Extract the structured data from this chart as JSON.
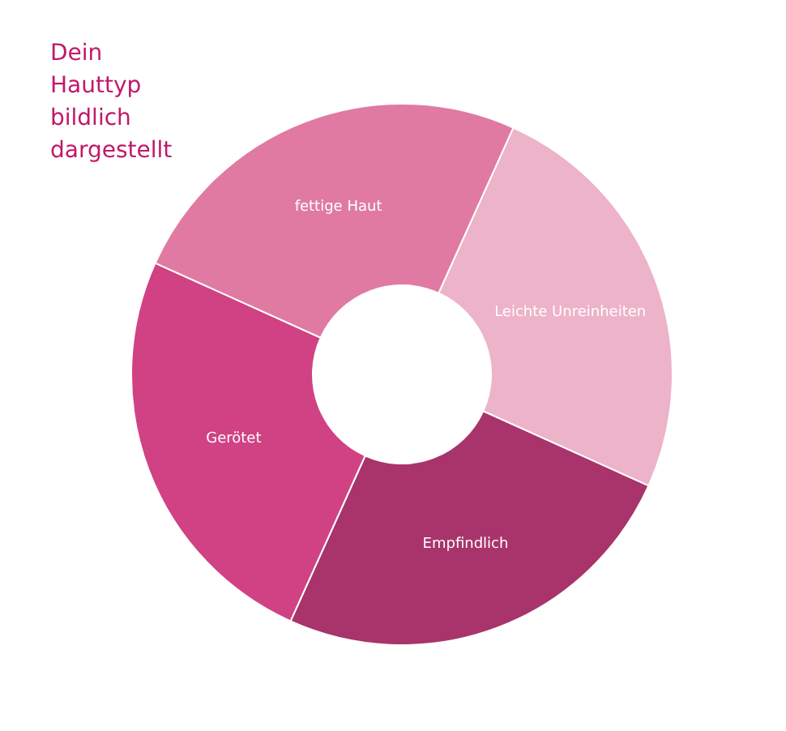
{
  "chart_data": {
    "type": "donut",
    "title": "Dein Hauttyp bildlich dargestellt",
    "categories": [
      "Leichte Unreinheiten",
      "Empfindlich",
      "Gerötet",
      "fettige Haut"
    ],
    "values": [
      25,
      25,
      25,
      25
    ],
    "colors": [
      "#edb3c8",
      "#a8346b",
      "#d04283",
      "#e07aa2"
    ]
  }
}
